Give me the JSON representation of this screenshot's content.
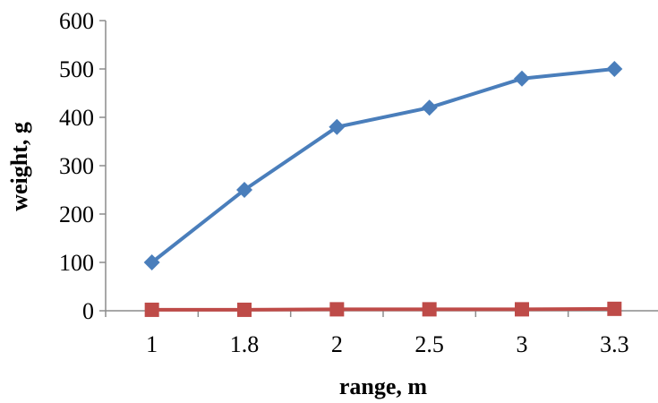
{
  "chart_data": {
    "type": "line",
    "title": "",
    "xlabel": "range, m",
    "ylabel": "weight, g",
    "categories": [
      "1",
      "1.8",
      "2",
      "2.5",
      "3",
      "3.3"
    ],
    "ylim": [
      0,
      600
    ],
    "yticks": [
      0,
      100,
      200,
      300,
      400,
      500,
      600
    ],
    "grid": false,
    "legend": "none",
    "series": [
      {
        "values": [
          100,
          250,
          380,
          420,
          480,
          500
        ],
        "color": "#4A7EBB",
        "marker": "diamond"
      },
      {
        "values": [
          2,
          2,
          3,
          3,
          3,
          4
        ],
        "color": "#BE4B48",
        "marker": "square"
      }
    ]
  }
}
